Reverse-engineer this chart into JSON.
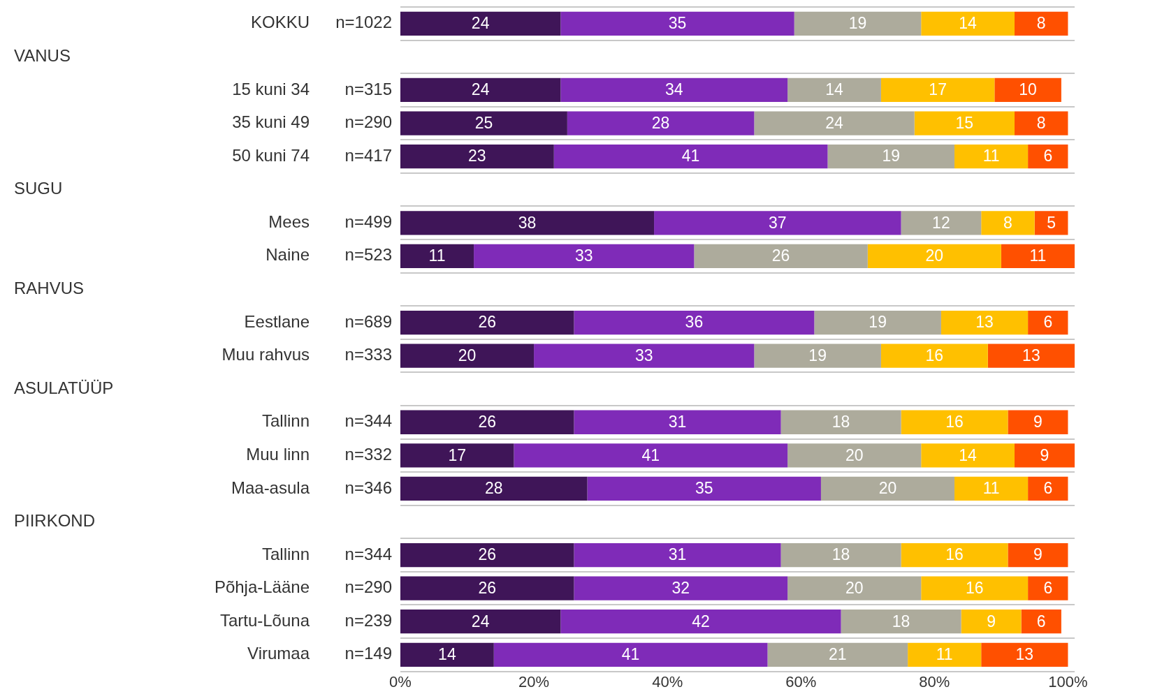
{
  "chart_data": {
    "type": "bar",
    "orientation": "horizontal",
    "stacked": true,
    "data_labels": true,
    "grid": "y",
    "legend": false,
    "categories": [
      "KOKKU",
      null,
      "15 kuni 34",
      "35 kuni 49",
      "50 kuni 74",
      null,
      "Mees",
      "Naine",
      null,
      "Eestlane",
      "Muu rahvus",
      null,
      "Tallinn",
      "Muu linn",
      "Maa-asula",
      null,
      "Tallinn",
      "Põhja-Lääne",
      "Tartu-Lõuna",
      "Virumaa"
    ],
    "series": [
      {
        "color": "#3f1558",
        "values": [
          24,
          null,
          24,
          25,
          23,
          null,
          38,
          11,
          null,
          26,
          20,
          null,
          26,
          17,
          28,
          null,
          26,
          26,
          24,
          14
        ]
      },
      {
        "color": "#7f2bb8",
        "values": [
          35,
          null,
          34,
          28,
          41,
          null,
          37,
          33,
          null,
          36,
          33,
          null,
          31,
          41,
          35,
          null,
          31,
          32,
          42,
          41
        ]
      },
      {
        "color": "#adab9c",
        "values": [
          19,
          null,
          14,
          24,
          19,
          null,
          12,
          26,
          null,
          19,
          19,
          null,
          18,
          20,
          20,
          null,
          18,
          20,
          18,
          21
        ]
      },
      {
        "color": "#ffc000",
        "values": [
          14,
          null,
          17,
          15,
          11,
          null,
          8,
          20,
          null,
          13,
          16,
          null,
          16,
          14,
          11,
          null,
          16,
          16,
          9,
          11
        ]
      },
      {
        "color": "#ff5000",
        "values": [
          8,
          null,
          10,
          8,
          6,
          null,
          5,
          11,
          null,
          6,
          13,
          null,
          9,
          9,
          6,
          null,
          9,
          6,
          6,
          13
        ]
      }
    ],
    "xlim": [
      0,
      101
    ],
    "xticks": [
      {
        "value": 0,
        "label": "0%"
      },
      {
        "value": 20,
        "label": "20%"
      },
      {
        "value": 40,
        "label": "40%"
      },
      {
        "value": 60,
        "label": "60%"
      },
      {
        "value": 80,
        "label": "80%"
      },
      {
        "value": 100,
        "label": "100%"
      }
    ],
    "annotations": [
      "n=1022",
      "VANUS",
      "n=315",
      "n=290",
      "n=417",
      "SUGU",
      "n=499",
      "n=523",
      "RAHVUS",
      "n=689",
      "n=333",
      "ASULATÜÜP",
      "n=344",
      "n=332",
      "n=346",
      "PIIRKOND",
      "n=344",
      "n=290",
      "n=239",
      "n=149"
    ]
  }
}
